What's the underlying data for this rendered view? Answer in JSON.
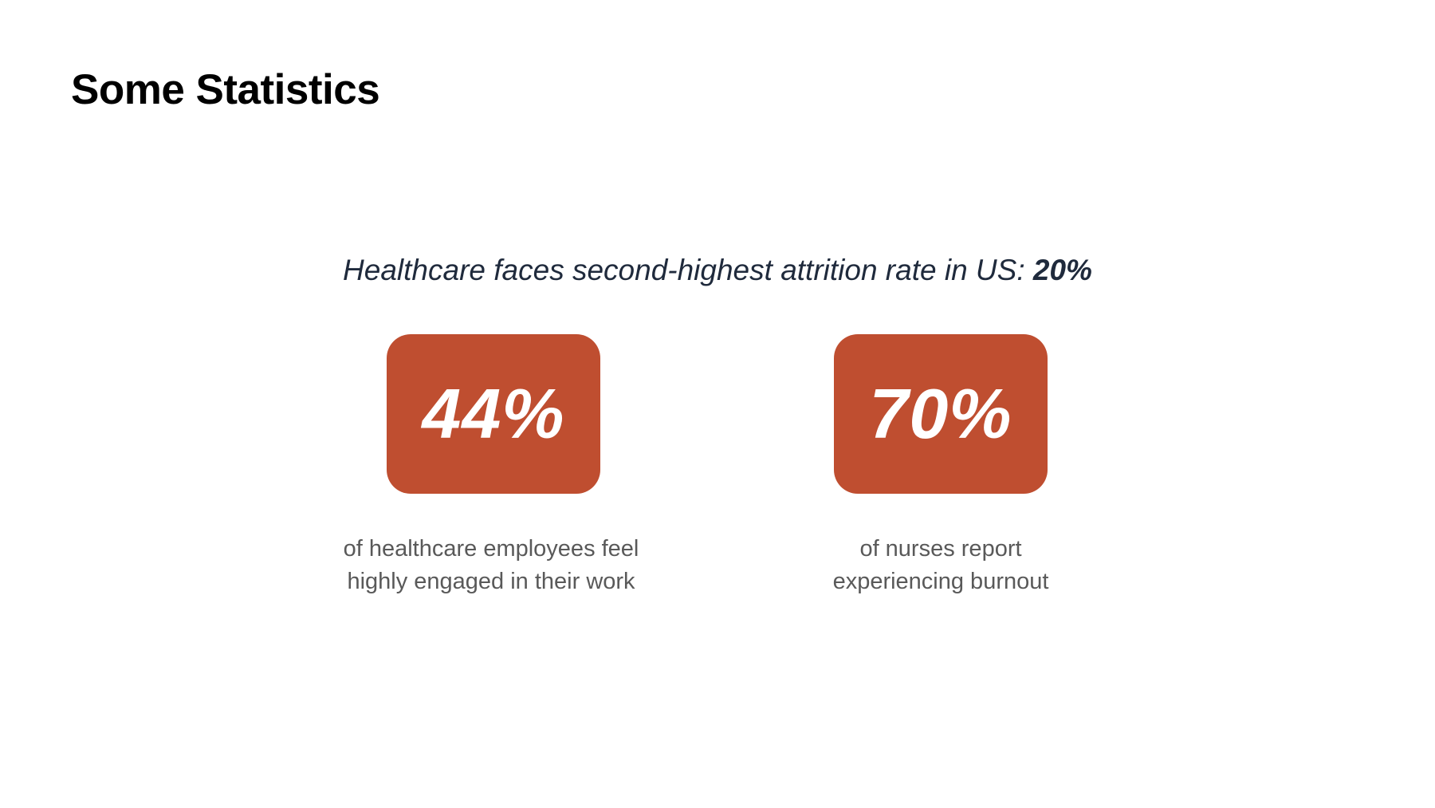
{
  "slide": {
    "title": "Some Statistics",
    "subtitle": {
      "text": "Healthcare faces second-highest attrition rate in US: ",
      "highlight": "20%"
    },
    "accent_color": "#bf4e30",
    "stats": [
      {
        "value": "44%",
        "caption_line_1": "of healthcare employees feel",
        "caption_line_2": "highly engaged in their work"
      },
      {
        "value": "70%",
        "caption_line_1": "of nurses report",
        "caption_line_2": "experiencing burnout"
      }
    ]
  }
}
